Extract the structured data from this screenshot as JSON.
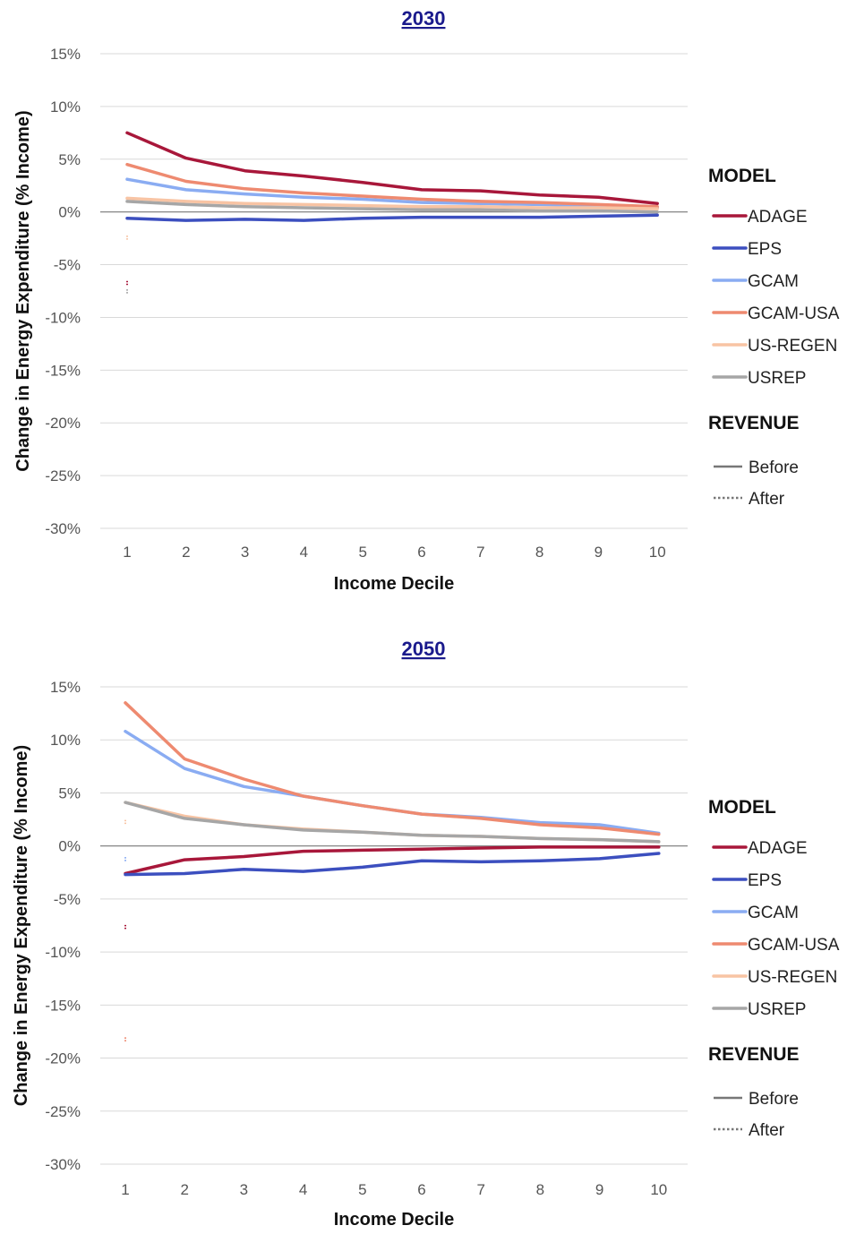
{
  "figure": {
    "legend": {
      "model_title": "MODEL",
      "revenue_title": "REVENUE",
      "revenue_items": [
        {
          "label": "Before",
          "style": "solid"
        },
        {
          "label": "After",
          "style": "dotted"
        }
      ]
    }
  },
  "chart_data": [
    {
      "type": "line",
      "title": "2030",
      "xlabel": "Income Decile",
      "ylabel": "Change in Energy Expenditure (% Income)",
      "x": [
        1,
        2,
        3,
        4,
        5,
        6,
        7,
        8,
        9,
        10
      ],
      "ylim": [
        -30,
        15
      ],
      "yticks": [
        15,
        10,
        5,
        0,
        -5,
        -10,
        -15,
        -20,
        -25,
        -30
      ],
      "ytick_labels": [
        "15%",
        "10%",
        "5%",
        "0%",
        "-5%",
        "-10%",
        "-15%",
        "-20%",
        "-25%",
        "-30%"
      ],
      "grid": true,
      "legend_position": "right",
      "series": [
        {
          "name": "ADAGE",
          "color": "#a8173a",
          "revenue": "Before",
          "values": [
            7.5,
            5.1,
            3.9,
            3.4,
            2.8,
            2.1,
            2.0,
            1.6,
            1.4,
            0.8
          ]
        },
        {
          "name": "EPS",
          "color": "#3c4fbf",
          "revenue": "Before",
          "values": [
            -0.6,
            -0.8,
            -0.7,
            -0.8,
            -0.6,
            -0.5,
            -0.5,
            -0.5,
            -0.4,
            -0.3
          ]
        },
        {
          "name": "GCAM",
          "color": "#8aacf2",
          "revenue": "Before",
          "values": [
            3.1,
            2.1,
            1.7,
            1.4,
            1.2,
            0.9,
            0.8,
            0.7,
            0.6,
            0.4
          ]
        },
        {
          "name": "GCAM-USA",
          "color": "#ee8a70",
          "revenue": "Before",
          "values": [
            4.5,
            2.9,
            2.2,
            1.8,
            1.5,
            1.2,
            1.0,
            0.9,
            0.7,
            0.5
          ]
        },
        {
          "name": "US-REGEN",
          "color": "#f8c4a4",
          "revenue": "Before",
          "values": [
            1.3,
            1.0,
            0.8,
            0.7,
            0.6,
            0.5,
            0.5,
            0.4,
            0.4,
            0.3
          ]
        },
        {
          "name": "USREP",
          "color": "#a6a6a6",
          "revenue": "Before",
          "values": [
            1.0,
            0.7,
            0.5,
            0.4,
            0.3,
            0.2,
            0.2,
            0.1,
            0.1,
            0.0
          ]
        },
        {
          "name": "",
          "color": "#f8c4a4",
          "revenue": "After",
          "values": [
            -2.5,
            null,
            null,
            null,
            null,
            null,
            null,
            null,
            null,
            null
          ]
        },
        {
          "name": "",
          "color": "#a8173a",
          "revenue": "After",
          "values": [
            -6.8,
            null,
            null,
            null,
            null,
            null,
            null,
            null,
            null,
            null
          ]
        },
        {
          "name": "",
          "color": "#a6a6a6",
          "revenue": "After",
          "values": [
            -7.6,
            null,
            null,
            null,
            null,
            null,
            null,
            null,
            null,
            null
          ]
        }
      ]
    },
    {
      "type": "line",
      "title": "2050",
      "xlabel": "Income Decile",
      "ylabel": "Change in Energy Expenditure (% Income)",
      "x": [
        1,
        2,
        3,
        4,
        5,
        6,
        7,
        8,
        9,
        10
      ],
      "ylim": [
        -30,
        15
      ],
      "yticks": [
        15,
        10,
        5,
        0,
        -5,
        -10,
        -15,
        -20,
        -25,
        -30
      ],
      "ytick_labels": [
        "15%",
        "10%",
        "5%",
        "0%",
        "-5%",
        "-10%",
        "-15%",
        "-20%",
        "-25%",
        "-30%"
      ],
      "grid": true,
      "legend_position": "right",
      "series": [
        {
          "name": "ADAGE",
          "color": "#a8173a",
          "revenue": "Before",
          "values": [
            -2.6,
            -1.3,
            -1.0,
            -0.5,
            -0.4,
            -0.3,
            -0.2,
            -0.1,
            -0.1,
            -0.1
          ]
        },
        {
          "name": "EPS",
          "color": "#3c4fbf",
          "revenue": "Before",
          "values": [
            -2.7,
            -2.6,
            -2.2,
            -2.4,
            -2.0,
            -1.4,
            -1.5,
            -1.4,
            -1.2,
            -0.7
          ]
        },
        {
          "name": "GCAM",
          "color": "#8aacf2",
          "revenue": "Before",
          "values": [
            10.8,
            7.3,
            5.6,
            4.7,
            3.8,
            3.0,
            2.7,
            2.2,
            2.0,
            1.2
          ]
        },
        {
          "name": "GCAM-USA",
          "color": "#ee8a70",
          "revenue": "Before",
          "values": [
            13.5,
            8.2,
            6.3,
            4.7,
            3.8,
            3.0,
            2.6,
            2.0,
            1.7,
            1.1
          ]
        },
        {
          "name": "US-REGEN",
          "color": "#f8c4a4",
          "revenue": "Before",
          "values": [
            4.1,
            2.8,
            2.0,
            1.6,
            1.3,
            1.0,
            0.9,
            0.7,
            0.6,
            0.4
          ]
        },
        {
          "name": "USREP",
          "color": "#a6a6a6",
          "revenue": "Before",
          "values": [
            4.1,
            2.6,
            2.0,
            1.5,
            1.3,
            1.0,
            0.9,
            0.7,
            0.6,
            0.4
          ]
        },
        {
          "name": "",
          "color": "#f8c4a4",
          "revenue": "After",
          "values": [
            2.2,
            null,
            null,
            null,
            null,
            null,
            null,
            null,
            null,
            null
          ]
        },
        {
          "name": "",
          "color": "#8aacf2",
          "revenue": "After",
          "values": [
            -1.3,
            null,
            null,
            null,
            null,
            null,
            null,
            null,
            null,
            null
          ]
        },
        {
          "name": "",
          "color": "#a8173a",
          "revenue": "After",
          "values": [
            -7.7,
            null,
            null,
            null,
            null,
            null,
            null,
            null,
            null,
            null
          ]
        },
        {
          "name": "",
          "color": "#ee8a70",
          "revenue": "After",
          "values": [
            -18.3,
            null,
            null,
            null,
            null,
            null,
            null,
            null,
            null,
            null
          ]
        }
      ]
    }
  ]
}
